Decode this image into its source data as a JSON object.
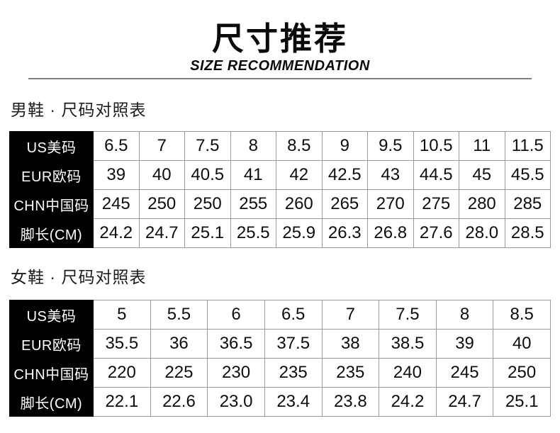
{
  "page": {
    "title": "尺寸推荐",
    "subtitle": "SIZE RECOMMENDATION"
  },
  "sections": [
    {
      "heading": "男鞋 · 尺码对照表",
      "table": {
        "row_headers": [
          "US美码",
          "EUR欧码",
          "CHN中国码",
          "脚长(CM)"
        ],
        "rows": [
          [
            "6.5",
            "7",
            "7.5",
            "8",
            "8.5",
            "9",
            "9.5",
            "10.5",
            "11",
            "11.5"
          ],
          [
            "39",
            "40",
            "40.5",
            "41",
            "42",
            "42.5",
            "43",
            "44.5",
            "45",
            "45.5"
          ],
          [
            "245",
            "250",
            "250",
            "255",
            "260",
            "265",
            "270",
            "275",
            "280",
            "285"
          ],
          [
            "24.2",
            "24.7",
            "25.1",
            "25.5",
            "25.9",
            "26.3",
            "26.8",
            "27.6",
            "28.0",
            "28.5"
          ]
        ]
      }
    },
    {
      "heading": "女鞋 · 尺码对照表",
      "table": {
        "row_headers": [
          "US美码",
          "EUR欧码",
          "CHN中国码",
          "脚长(CM)"
        ],
        "rows": [
          [
            "5",
            "5.5",
            "6",
            "6.5",
            "7",
            "7.5",
            "8",
            "8.5"
          ],
          [
            "35.5",
            "36",
            "36.5",
            "37.5",
            "38",
            "38.5",
            "39",
            "40"
          ],
          [
            "220",
            "225",
            "230",
            "235",
            "235",
            "240",
            "245",
            "250"
          ],
          [
            "22.1",
            "22.6",
            "23.0",
            "23.4",
            "23.8",
            "24.2",
            "24.7",
            "25.1"
          ]
        ]
      }
    }
  ],
  "colors": {
    "header_bg": "#000000",
    "header_text": "#ffffff",
    "cell_text": "#0d0d0d",
    "border_color": "#9a9a9a",
    "rule_color": "#7f7f7f",
    "page_bg": "#ffffff"
  }
}
